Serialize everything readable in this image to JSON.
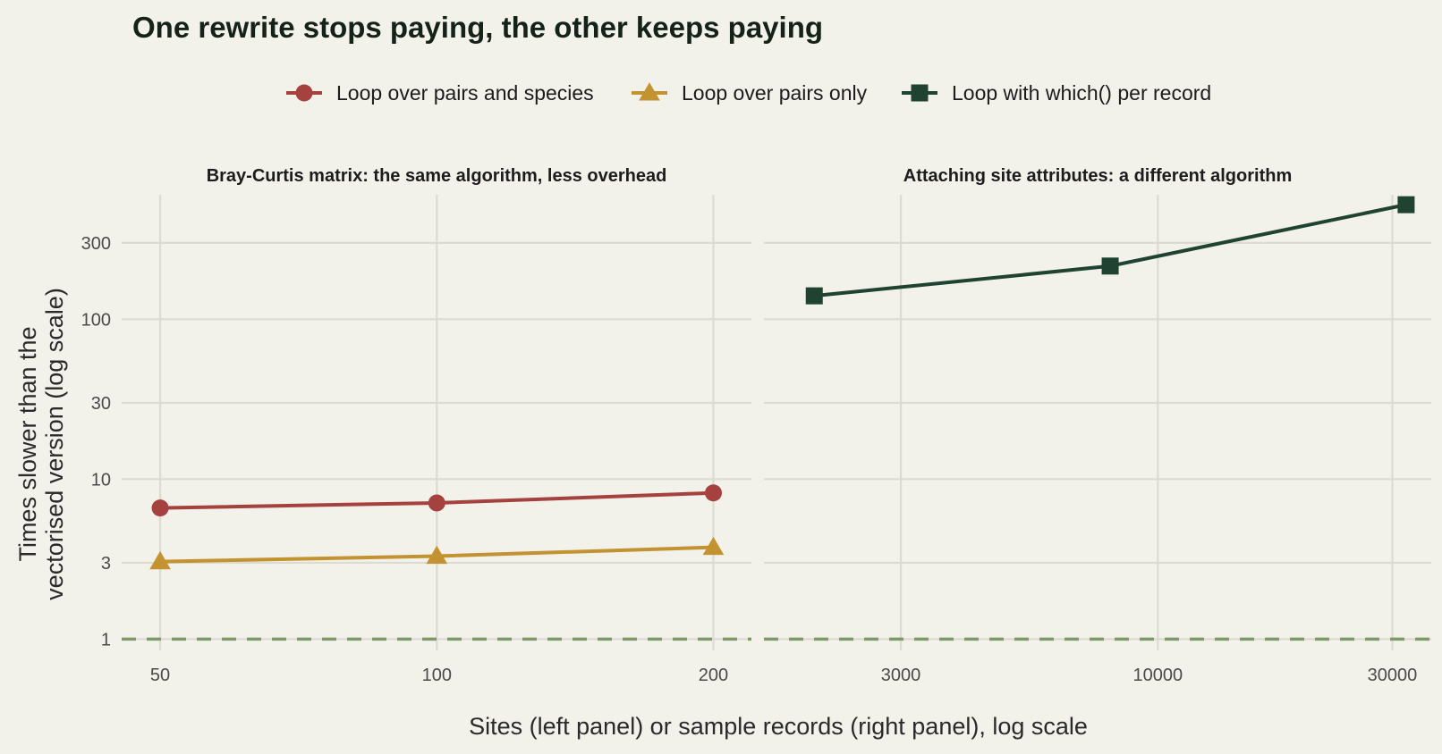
{
  "chart_data": {
    "type": "line",
    "title": "One rewrite stops paying, the other keeps paying",
    "xlabel": "Sites (left panel) or sample records (right panel), log scale",
    "ylabel": [
      "Times slower than the",
      "vectorised version (log scale)"
    ],
    "y_scale": "log",
    "y_ticks": [
      1,
      3,
      10,
      30,
      100,
      300
    ],
    "y_range": [
      0.85,
      600
    ],
    "reference_line": {
      "y": 1,
      "style": "dashed",
      "color": "#7f9a6a"
    },
    "grid": true,
    "legend": {
      "placement": "top",
      "entries": [
        {
          "label": "Loop over pairs and species",
          "color": "#a5413e",
          "marker": "circle"
        },
        {
          "label": "Loop over pairs only",
          "color": "#c39231",
          "marker": "triangle"
        },
        {
          "label": "Loop with which() per record",
          "color": "#1f4330",
          "marker": "square"
        }
      ]
    },
    "panels": [
      {
        "title": "Bray-Curtis matrix: the same algorithm, less overhead",
        "x_scale": "log",
        "x_ticks": [
          50,
          100,
          200
        ],
        "x_range": [
          45.4,
          220
        ],
        "series": [
          {
            "name": "Loop over pairs and species",
            "color": "#a5413e",
            "marker": "circle",
            "x": [
              50,
              100,
              200
            ],
            "y": [
              6.6,
              7.1,
              8.2
            ]
          },
          {
            "name": "Loop over pairs only",
            "color": "#c39231",
            "marker": "triangle",
            "x": [
              50,
              100,
              200
            ],
            "y": [
              3.05,
              3.3,
              3.75
            ]
          }
        ]
      },
      {
        "title": "Attaching site attributes: a different algorithm",
        "x_scale": "log",
        "x_ticks": [
          3000,
          10000,
          30000
        ],
        "x_range": [
          1580,
          36000
        ],
        "series": [
          {
            "name": "Loop with which() per record",
            "color": "#1f4330",
            "marker": "square",
            "x": [
              2000,
              8000,
              32000
            ],
            "y": [
              140,
              215,
              520
            ]
          }
        ]
      }
    ]
  }
}
